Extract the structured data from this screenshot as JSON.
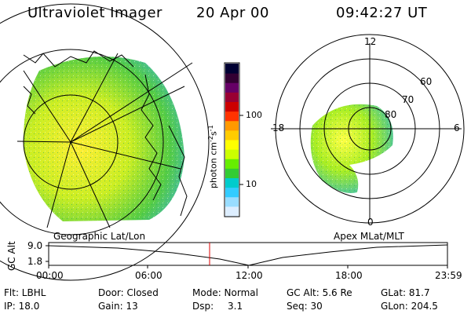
{
  "header": {
    "title": "Ultraviolet Imager",
    "date": "20 Apr 00",
    "time": "09:42:27 UT"
  },
  "panels": {
    "left_label": "Geographic Lat/Lon",
    "right_label": "Apex MLat/MLT"
  },
  "colorbar": {
    "unit_label": "photon cm",
    "unit_exp1": "-2",
    "unit_mid": "s",
    "unit_exp2": "-1",
    "tick_100": "100",
    "tick_10": "10",
    "colors": [
      "#000033",
      "#330033",
      "#660066",
      "#990033",
      "#cc0000",
      "#ff3300",
      "#ff9900",
      "#ffcc00",
      "#ffff00",
      "#ccff00",
      "#66ee00",
      "#33cc33",
      "#00cccc",
      "#33ccff",
      "#99ddff",
      "#ddeeff"
    ]
  },
  "polar": {
    "mlt_12": "12",
    "mlt_18": "18",
    "mlt_6": "6",
    "mlt_0": "0",
    "lat_60": "60",
    "lat_70": "70",
    "lat_80": "80"
  },
  "timeline": {
    "axis_label": "GC Alt",
    "y_top": "9.0",
    "y_bottom": "1.8",
    "ticks": [
      "00:00",
      "06:00",
      "12:00",
      "18:00",
      "23:59"
    ],
    "marker_color": "#dd0000"
  },
  "footer": {
    "flt": "Flt: LBHL",
    "ip": "IP: 18.0",
    "door": "Door: Closed",
    "gain": "Gain: 13",
    "mode": "Mode: Normal",
    "dsp": "Dsp:",
    "dsp_val": "3.1",
    "gcalt": "GC Alt: 5.6 Re",
    "seq": "Seq: 30",
    "glat": "GLat: 81.7",
    "glon": "GLon: 204.5"
  }
}
